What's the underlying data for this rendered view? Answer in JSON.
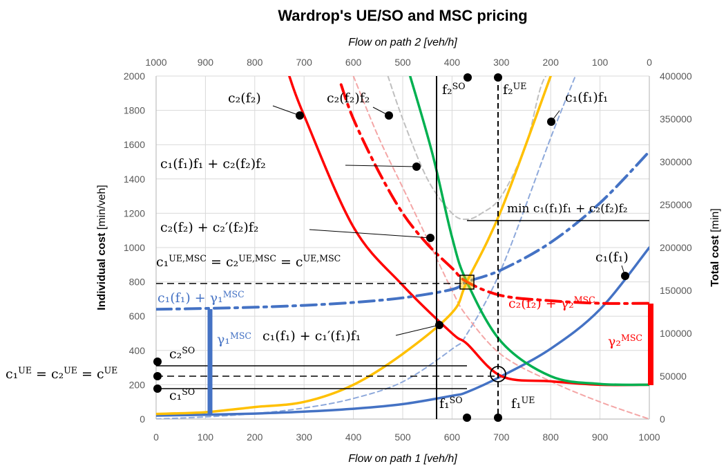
{
  "chart_data": {
    "type": "line",
    "title": "Wardrop's UE/SO and MSC pricing",
    "x_bottom": {
      "label": "Flow on path 1 [veh/h]",
      "range": [
        0,
        1000
      ],
      "ticks": [
        "0",
        "100",
        "200",
        "300",
        "400",
        "500",
        "600",
        "700",
        "800",
        "900",
        "1000"
      ]
    },
    "x_top": {
      "label": "Flow on path 2 [veh/h]",
      "range": [
        1000,
        0
      ],
      "ticks": [
        "1000",
        "900",
        "800",
        "700",
        "600",
        "500",
        "400",
        "300",
        "200",
        "100",
        "0"
      ]
    },
    "y_left": {
      "label_bold": "Individual cost",
      "label_unit": " [min/veh]",
      "range": [
        0,
        2000
      ],
      "ticks": [
        "0",
        "200",
        "400",
        "600",
        "800",
        "1000",
        "1200",
        "1400",
        "1600",
        "1800",
        "2000"
      ]
    },
    "y_right": {
      "label_bold": "Total cost",
      "label_unit": " [min]",
      "range": [
        0,
        400000
      ],
      "ticks": [
        "0",
        "50000",
        "100000",
        "150000",
        "200000",
        "250000",
        "300000",
        "350000",
        "400000"
      ]
    },
    "grid": "vertical and horizontal",
    "colors": {
      "path1_cost": "#4472C4",
      "path2_cost": "#FF0000",
      "path1_mc": "#FFC000",
      "path2_mc": "#00B050",
      "total_cost": "#BFBFBF"
    },
    "series": [
      {
        "name": "c1(f1)",
        "axis": "left",
        "style": "solid",
        "color": "#4472C4",
        "x": [
          0,
          100,
          200,
          300,
          400,
          500,
          600,
          630,
          700,
          800,
          900,
          1000
        ],
        "y": [
          20,
          25,
          32,
          43,
          60,
          87,
          136,
          157,
          250,
          410,
          640,
          1000
        ]
      },
      {
        "name": "c2(f2)",
        "axis": "left",
        "style": "solid",
        "color": "#FF0000",
        "x": [
          270,
          300,
          400,
          500,
          600,
          630,
          700,
          800,
          900,
          1000
        ],
        "y": [
          2000,
          1770,
          1120,
          780,
          500,
          440,
          250,
          220,
          200,
          200
        ]
      },
      {
        "name": "c1(f1) + c1'(f1)f1",
        "axis": "left",
        "style": "solid",
        "color": "#FFC000",
        "x": [
          0,
          100,
          200,
          300,
          400,
          500,
          600,
          630,
          700,
          800
        ],
        "y": [
          30,
          40,
          70,
          100,
          200,
          380,
          620,
          800,
          1220,
          2000
        ]
      },
      {
        "name": "c2(f2) + c2'(f2)f2",
        "axis": "left",
        "style": "solid",
        "color": "#00B050",
        "x": [
          515,
          560,
          600,
          630,
          700,
          800,
          900,
          1000
        ],
        "y": [
          2000,
          1550,
          1060,
          800,
          450,
          250,
          205,
          200
        ]
      },
      {
        "name": "c1(f1) + γ1MSC",
        "axis": "left",
        "style": "dashdot",
        "color": "#4472C4",
        "x": [
          0,
          100,
          200,
          300,
          400,
          500,
          600,
          630,
          700,
          800,
          900,
          1000
        ],
        "y": [
          640,
          645,
          652,
          663,
          680,
          707,
          756,
          800,
          870,
          1030,
          1260,
          1560
        ]
      },
      {
        "name": "c2(f2) + γ2MSC",
        "axis": "left",
        "style": "dashdot",
        "color": "#FF0000",
        "x": [
          375,
          400,
          450,
          500,
          550,
          600,
          630,
          700,
          800,
          900,
          1000
        ],
        "y": [
          1950,
          1750,
          1450,
          1200,
          1020,
          880,
          800,
          720,
          690,
          675,
          675
        ]
      },
      {
        "name": "c1(f1)f1",
        "axis": "right",
        "style": "dashed",
        "color": "#8EA9DB",
        "x": [
          0,
          100,
          200,
          300,
          400,
          500,
          600,
          630,
          700,
          800,
          850
        ],
        "y": [
          0,
          2500,
          6400,
          12900,
          24000,
          43500,
          81600,
          99000,
          175000,
          328000,
          400000
        ]
      },
      {
        "name": "c2(f2)f2",
        "axis": "right",
        "style": "dashed",
        "color": "#F4A6A6",
        "x": [
          400,
          450,
          500,
          550,
          600,
          630,
          700,
          800,
          900,
          1000
        ],
        "y": [
          400000,
          330000,
          270000,
          210000,
          150000,
          120000,
          75000,
          44000,
          20000,
          0
        ]
      },
      {
        "name": "c1(f1)f1 + c2(f2)f2",
        "axis": "right",
        "style": "dashed",
        "color": "#BFBFBF",
        "x": [
          470,
          500,
          550,
          600,
          630,
          660,
          700,
          750,
          790,
          850
        ],
        "y": [
          400000,
          350000,
          280000,
          240000,
          233000,
          240000,
          260000,
          320000,
          400000,
          400000
        ]
      }
    ],
    "annotations": {
      "c2_f2": "c₂(f₂)",
      "c2f2": "c₂(f₂)f₂",
      "f2_so": "f₂",
      "f2_so_sup": "SO",
      "f2_ue": "f₂",
      "f2_ue_sup": "UE",
      "c1f1": "c₁(f₁)f₁",
      "total": "c₁(f₁)f₁ + c₂(f₂)f₂",
      "min_total": "min c₁(f₁)f₁ + c₂(f₂)f₂",
      "mc2": "c₂(f₂) + c₂′(f₂)f₂",
      "ue_msc_lhs": "c₁",
      "ue_msc_lhs_sup": "UE,MSC",
      "ue_msc_mid": " = c₂",
      "ue_msc_mid_sup": "UE,MSC",
      "ue_msc_rhs": " = c",
      "ue_msc_rhs_sup": "UE,MSC",
      "c1_f1": "c₁(f₁)",
      "c2_msc": "c₂(f₂) + γ₂",
      "c2_msc_sup": "MSC",
      "c1_msc": "c₁(f₁) + γ₁",
      "c1_msc_sup": "MSC",
      "gamma1": "γ₁",
      "gamma1_sup": "MSC",
      "gamma2": "γ₂",
      "gamma2_sup": "MSC",
      "mc1": "c₁(f₁) + c₁′(f₁)f₁",
      "c2_so": "c₂",
      "c2_so_sup": "SO",
      "ue_equal": "c₁",
      "ue_equal_sup": "UE",
      "ue_equal_mid": " = c₂",
      "ue_equal_mid_sup": "UE",
      "ue_equal_rhs": " = c",
      "ue_equal_rhs_sup": "UE",
      "c1_so": "c₁",
      "c1_so_sup": "SO",
      "f1_so": "f₁",
      "f1_so_sup": "SO",
      "f1_ue": "f₁",
      "f1_ue_sup": "UE"
    }
  }
}
